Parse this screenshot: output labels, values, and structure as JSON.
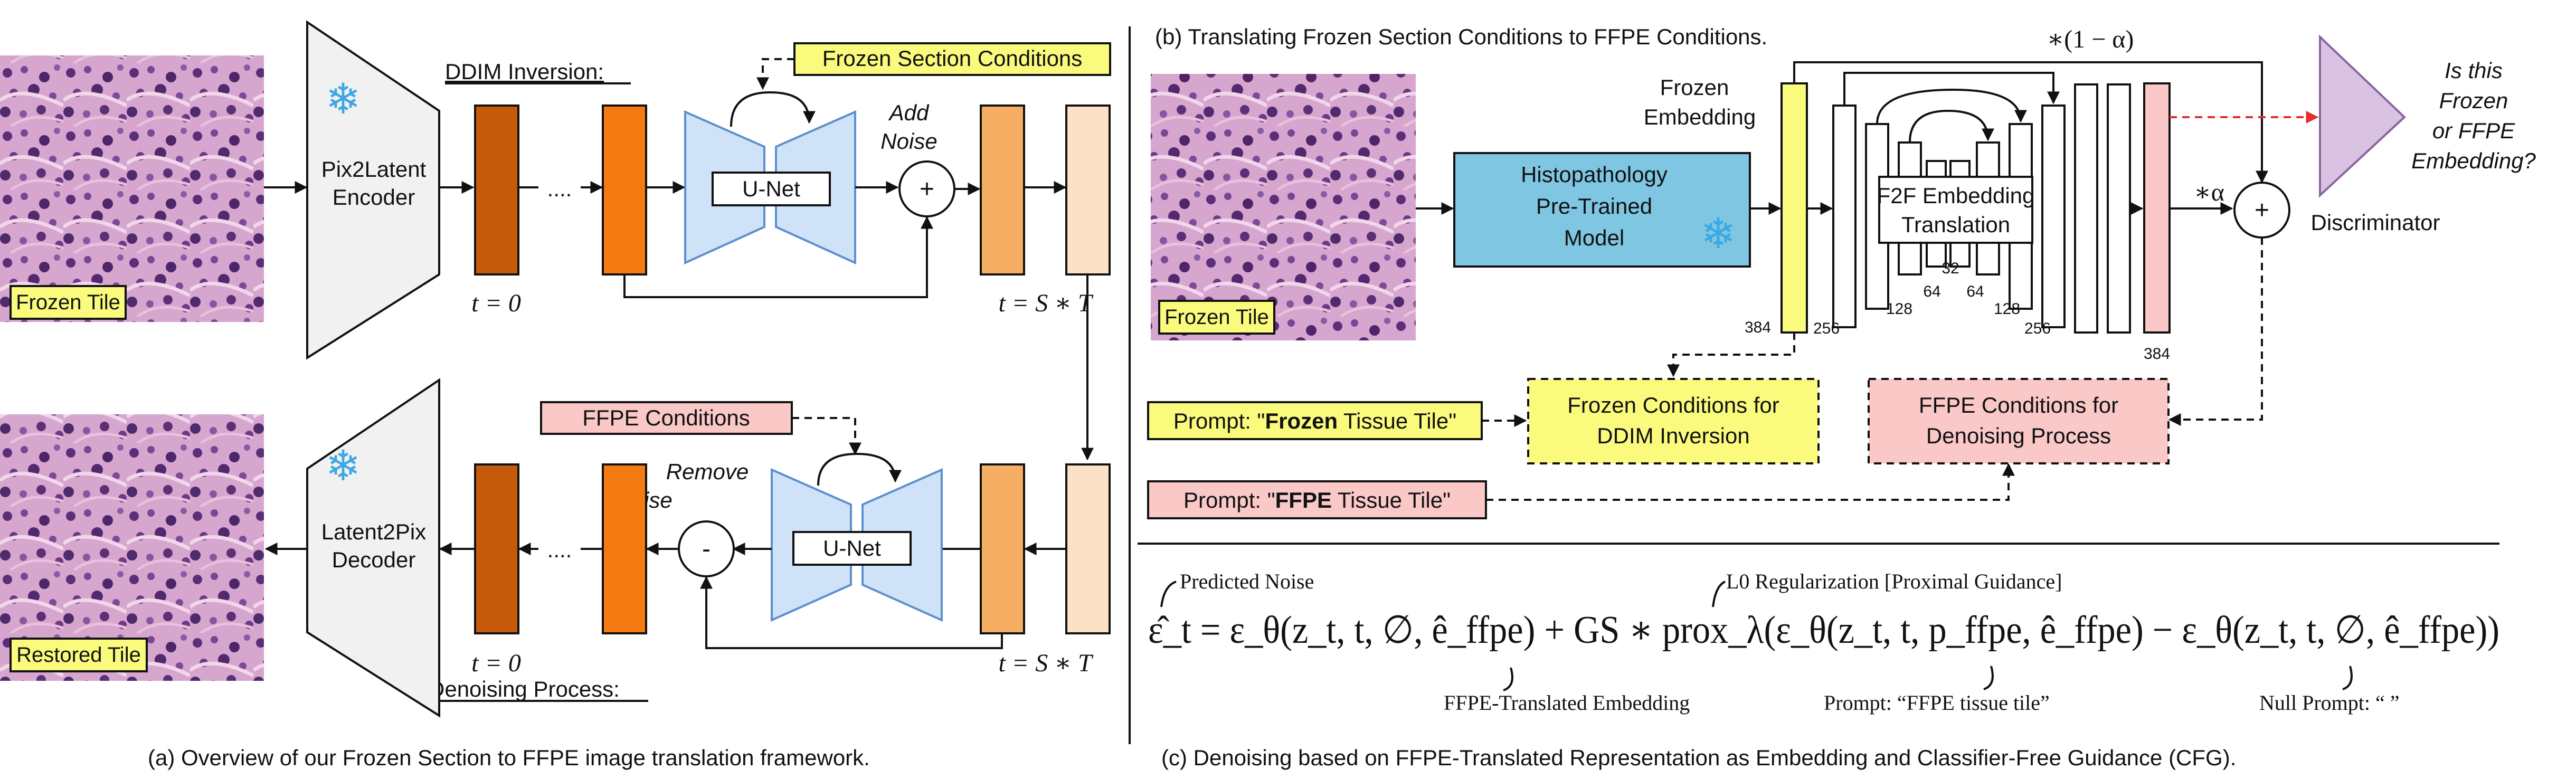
{
  "colors": {
    "dark_orange": "#c55a0a",
    "orange": "#f47b12",
    "light_orange": "#f6ae64",
    "peach": "#fde1c6",
    "unet_blue": "#cfe2f7",
    "model_blue": "#7ec6e2",
    "yellow": "#fafb7d",
    "pink": "#f9c8c7",
    "discriminator": "#d9c2e2",
    "snowflake": "#3aa7e6",
    "encoder_gray": "#f1f1f1",
    "red_arrow": "#e03030"
  },
  "icons": [
    "snowflake-icon",
    "tissue-image"
  ],
  "panel_a": {
    "caption": "(a) Overview of our Frozen Section to FFPE image translation framework.",
    "frozen_tile_label": "Frozen Tile",
    "restored_tile_label": "Restored Tile",
    "encoder_label": [
      "Pix2Latent",
      "Encoder"
    ],
    "decoder_label": [
      "Latent2Pix",
      "Decoder"
    ],
    "ddim_title": "DDIM Inversion:",
    "denoise_title": "Denoising Process:",
    "frozen_conditions": "Frozen Section Conditions",
    "ffpe_conditions": "FFPE Conditions",
    "unet_label": "U-Net",
    "add_noise": [
      "Add",
      "Noise"
    ],
    "remove_noise": [
      "Remove",
      "Noise"
    ],
    "ellipsis": "....",
    "t_zero": "t = 0",
    "t_final": "t = S ∗ T",
    "plus": "+",
    "minus": "-"
  },
  "panel_b": {
    "title": "(b) Translating Frozen Section Conditions to FFPE Conditions.",
    "frozen_tile_label": "Frozen Tile",
    "pretrained_model": [
      "Histopathology",
      "Pre-Trained",
      "Model"
    ],
    "frozen_embedding": [
      "Frozen",
      "Embedding"
    ],
    "f2f_label": [
      "F2F Embedding",
      "Translation"
    ],
    "dims": {
      "d384": "384",
      "d256": "256",
      "d128": "128",
      "d64": "64",
      "d32": "32"
    },
    "one_minus_alpha": "∗(1 − α)",
    "alpha": "∗α",
    "plus": "+",
    "discriminator_question": [
      "Is this",
      "Frozen",
      "or FFPE",
      "Embedding?"
    ],
    "discriminator_label": "Discriminator",
    "prompt_frozen": {
      "prefix": "Prompt: \"",
      "bold": "Frozen",
      "suffix": " Tissue Tile\""
    },
    "prompt_ffpe": {
      "prefix": "Prompt: \"",
      "bold": "FFPE",
      "suffix": " Tissue Tile\""
    },
    "frozen_conditions_box": [
      "Frozen Conditions for",
      "DDIM Inversion"
    ],
    "ffpe_conditions_box": [
      "FFPE Conditions for",
      "Denoising Process"
    ]
  },
  "panel_c": {
    "caption": "(c) Denoising based on FFPE-Translated Representation as Embedding and Classifier-Free Guidance (CFG).",
    "predicted_noise": "Predicted Noise",
    "l0_reg": "L0 Regularization [Proximal Guidance]",
    "ffpe_translated_embedding": "FFPE-Translated Embedding",
    "prompt_label": "Prompt: “FFPE tissue tile”",
    "null_prompt": "Null Prompt: “ ”",
    "equation": "ε̂_t = ε_θ(z_t, t, ∅, ê_ffpe) + GS ∗ prox_λ(ε_θ(z_t, t, p_ffpe, ê_ffpe) − ε_θ(z_t, t, ∅, ê_ffpe))"
  }
}
